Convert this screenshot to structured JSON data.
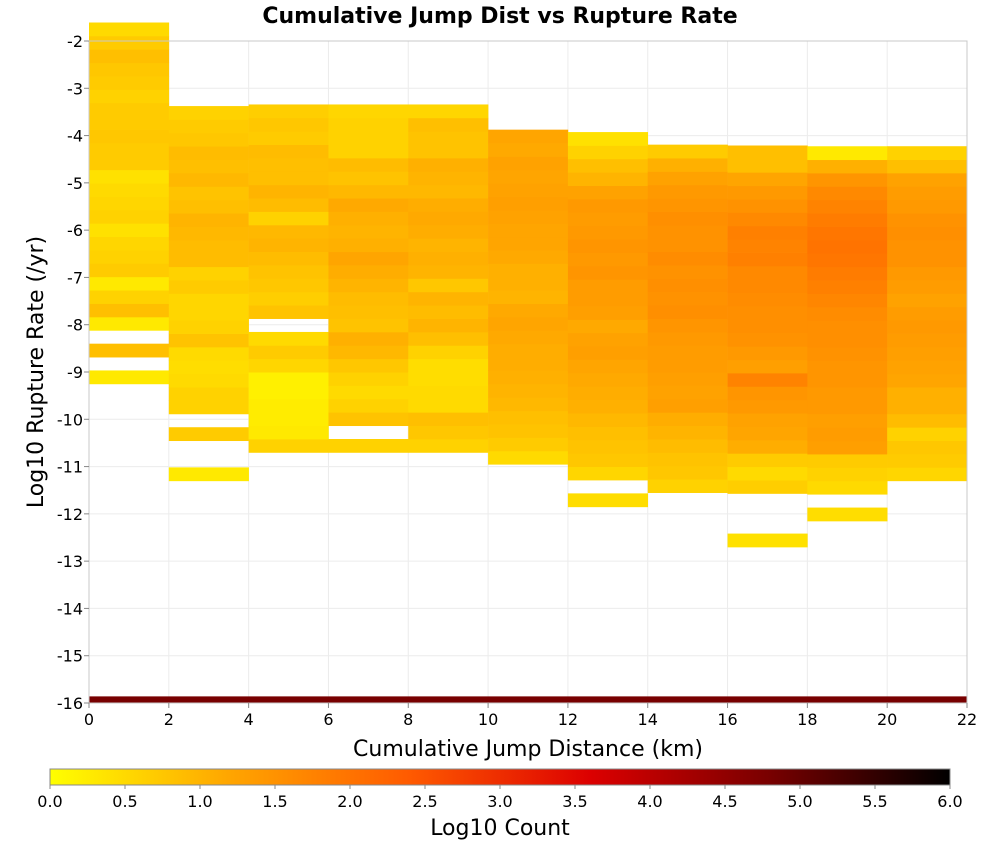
{
  "chart_data": {
    "type": "heatmap",
    "title": "Cumulative Jump Dist vs Rupture Rate",
    "xlabel": "Cumulative Jump Distance (km)",
    "ylabel": "Log10 Rupture Rate (/yr)",
    "xlim": [
      0,
      22
    ],
    "ylim": [
      -16,
      -2
    ],
    "x_ticks": [
      "0",
      "2",
      "4",
      "6",
      "8",
      "10",
      "12",
      "14",
      "16",
      "18",
      "20",
      "22"
    ],
    "y_ticks": [
      "-2",
      "-3",
      "-4",
      "-5",
      "-6",
      "-7",
      "-8",
      "-9",
      "-10",
      "-11",
      "-12",
      "-13",
      "-14",
      "-15",
      "-16"
    ],
    "grid": true,
    "x_bin_width": 2,
    "y_bin_height": 0.283,
    "colorbar": {
      "label": "Log10 Count",
      "range": [
        0,
        6
      ],
      "ticks": [
        "0.0",
        "0.5",
        "1.0",
        "1.5",
        "2.0",
        "2.5",
        "3.0",
        "3.5",
        "4.0",
        "4.5",
        "5.0",
        "5.5",
        "6.0"
      ],
      "colors": [
        "#ffff00",
        "#ffa500",
        "#ff5a00",
        "#dc0000",
        "#780000",
        "#000000"
      ]
    },
    "baseline_band": {
      "y_start": -16,
      "y_end": -15.86,
      "value": 4.8
    },
    "columns": [
      {
        "x_start": 0,
        "y_start": -9.25,
        "values": [
          0.3,
          null,
          0.85,
          null,
          0.3,
          0.85,
          0.6,
          0.3,
          0.7,
          0.6,
          0.55,
          0.4,
          0.6,
          0.55,
          0.5,
          0.4,
          0.7,
          0.7,
          0.75,
          0.7,
          0.7,
          0.6,
          0.7,
          0.75,
          0.85,
          0.7,
          0.5
        ]
      },
      {
        "x_start": 2,
        "y_start": -11.3,
        "values": [
          0.3,
          null,
          null,
          0.7,
          null,
          0.6,
          0.6,
          0.5,
          0.45,
          0.5,
          0.8,
          0.6,
          0.55,
          0.55,
          0.7,
          0.6,
          0.9,
          0.9,
          0.95,
          1.0,
          0.85,
          0.8,
          0.95,
          0.85,
          0.9,
          0.75,
          0.7,
          0.6
        ]
      },
      {
        "x_start": 4,
        "y_start": -10.7,
        "values": [
          0.6,
          0.3,
          0.25,
          0.25,
          0.2,
          0.2,
          0.55,
          0.7,
          0.5,
          null,
          0.8,
          0.65,
          0.75,
          0.8,
          0.9,
          1.0,
          0.95,
          0.6,
          0.9,
          1.0,
          0.85,
          0.85,
          0.9,
          0.7,
          0.75,
          0.65
        ]
      },
      {
        "x_start": 6,
        "y_start": -10.7,
        "values": [
          0.6,
          null,
          0.8,
          0.6,
          0.5,
          0.6,
          0.75,
          0.95,
          1.05,
          0.8,
          0.85,
          0.9,
          1.0,
          1.1,
          1.2,
          1.05,
          1.0,
          1.05,
          1.15,
          0.95,
          0.8,
          0.9,
          0.6,
          0.6,
          0.6,
          0.55
        ]
      },
      {
        "x_start": 8,
        "y_start": -10.7,
        "values": [
          0.6,
          0.75,
          0.85,
          0.5,
          0.5,
          0.45,
          0.45,
          0.6,
          0.85,
          1.0,
          0.9,
          1.0,
          0.75,
          1.0,
          1.05,
          1.0,
          1.1,
          1.15,
          1.1,
          0.95,
          1.0,
          1.05,
          0.8,
          0.8,
          0.85,
          0.55
        ]
      },
      {
        "x_start": 10,
        "y_start": -10.95,
        "values": [
          0.5,
          0.7,
          0.8,
          0.85,
          0.95,
          1.0,
          1.05,
          1.1,
          1.1,
          1.15,
          1.2,
          1.15,
          1.0,
          1.05,
          1.05,
          1.15,
          1.2,
          1.2,
          1.25,
          1.3,
          1.25,
          1.2,
          1.25,
          1.15,
          1.2
        ]
      },
      {
        "x_start": 12,
        "y_start": -11.85,
        "values": [
          0.45,
          null,
          0.55,
          0.75,
          0.8,
          0.85,
          0.95,
          1.05,
          1.1,
          1.15,
          1.2,
          1.3,
          1.25,
          1.15,
          1.3,
          1.35,
          1.35,
          1.45,
          1.4,
          1.45,
          1.4,
          1.35,
          1.4,
          1.25,
          1.0,
          0.85,
          0.6,
          0.4
        ]
      },
      {
        "x_start": 14,
        "y_start": -11.55,
        "values": [
          0.6,
          0.75,
          0.8,
          0.9,
          1.0,
          1.1,
          1.3,
          1.25,
          1.3,
          1.35,
          1.35,
          1.4,
          1.45,
          1.55,
          1.5,
          1.55,
          1.5,
          1.6,
          1.5,
          1.5,
          1.55,
          1.45,
          1.4,
          1.25,
          1.05,
          0.7
        ]
      },
      {
        "x_start": 16,
        "y_start": -12.7,
        "values": [
          0.4,
          null,
          null,
          null,
          0.65,
          0.5,
          0.7,
          1.1,
          1.2,
          1.25,
          1.4,
          1.45,
          1.75,
          1.3,
          1.4,
          1.5,
          1.55,
          1.55,
          1.6,
          1.65,
          1.65,
          1.8,
          1.75,
          1.8,
          1.65,
          1.5,
          1.4,
          1.2,
          0.85,
          0.85
        ]
      },
      {
        "x_start": 18,
        "y_start": -12.15,
        "values": [
          0.45,
          null,
          0.5,
          0.6,
          0.7,
          1.3,
          1.35,
          1.3,
          1.4,
          1.4,
          1.45,
          1.45,
          1.5,
          1.55,
          1.55,
          1.6,
          1.7,
          1.8,
          1.85,
          1.95,
          2.0,
          1.95,
          1.85,
          1.75,
          1.65,
          1.45,
          1.05,
          0.3
        ]
      },
      {
        "x_start": 20,
        "y_start": -11.3,
        "values": [
          0.55,
          0.7,
          0.75,
          0.6,
          0.9,
          1.05,
          1.05,
          1.2,
          1.25,
          1.3,
          1.35,
          1.4,
          1.35,
          1.25,
          1.35,
          1.4,
          1.5,
          1.5,
          1.55,
          1.5,
          1.4,
          1.35,
          1.25,
          0.85,
          0.6
        ]
      }
    ]
  }
}
